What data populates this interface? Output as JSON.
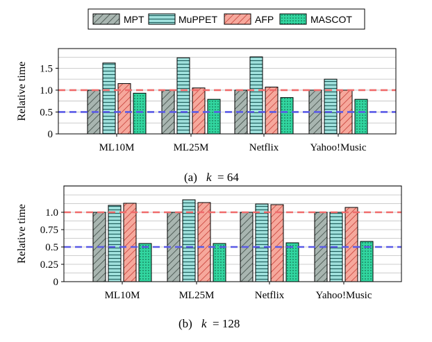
{
  "colors": {
    "MPT": "#a8b5b0",
    "MuPPET": "#9fe0dc",
    "AFP": "#f6a89c",
    "MASCOT": "#32d6a0",
    "ref_line_1": "#ef6b6b",
    "ref_line_05": "#5a5ae6"
  },
  "legend": {
    "position": "top-center",
    "entries": [
      {
        "name": "MPT",
        "pattern": "diagonal-hatch"
      },
      {
        "name": "MuPPET",
        "pattern": "horizontal-lines"
      },
      {
        "name": "AFP",
        "pattern": "diagonal-hatch"
      },
      {
        "name": "MASCOT",
        "pattern": "dots"
      }
    ]
  },
  "chart_data": [
    {
      "type": "bar",
      "caption": {
        "prefix": "(a)",
        "k_label": "k",
        "k_value": "= 64"
      },
      "ylabel": "Relative time",
      "ylim": [
        0,
        1.95
      ],
      "yticks": [
        "0",
        "0.5",
        "1.0",
        "1.5"
      ],
      "ytick_values": [
        0,
        0.5,
        1.0,
        1.5
      ],
      "minor_grid_step": 0.25,
      "reference_lines": [
        1.0,
        0.5
      ],
      "categories": [
        "ML10M",
        "ML25M",
        "Netflix",
        "Yahoo!Music"
      ],
      "series": [
        {
          "name": "MPT",
          "values": [
            1.0,
            1.0,
            1.0,
            1.0
          ]
        },
        {
          "name": "MuPPET",
          "values": [
            1.62,
            1.74,
            1.76,
            1.25
          ]
        },
        {
          "name": "AFP",
          "values": [
            1.15,
            1.05,
            1.07,
            1.0
          ]
        },
        {
          "name": "MASCOT",
          "values": [
            0.93,
            0.79,
            0.83,
            0.79
          ]
        }
      ]
    },
    {
      "type": "bar",
      "caption": {
        "prefix": "(b)",
        "k_label": "k",
        "k_value": "= 128"
      },
      "ylabel": "Relative time",
      "ylim": [
        0,
        1.38
      ],
      "yticks": [
        "0",
        "0.25",
        "0.5",
        "0.75",
        "1.0"
      ],
      "ytick_values": [
        0,
        0.25,
        0.5,
        0.75,
        1.0
      ],
      "minor_grid_step": 0.125,
      "reference_lines": [
        1.0,
        0.5
      ],
      "categories": [
        "ML10M",
        "ML25M",
        "Netflix",
        "Yahoo!Music"
      ],
      "series": [
        {
          "name": "MPT",
          "values": [
            1.0,
            1.0,
            1.0,
            1.0
          ]
        },
        {
          "name": "MuPPET",
          "values": [
            1.1,
            1.18,
            1.12,
            1.0
          ]
        },
        {
          "name": "AFP",
          "values": [
            1.13,
            1.14,
            1.11,
            1.07
          ]
        },
        {
          "name": "MASCOT",
          "values": [
            0.55,
            0.55,
            0.56,
            0.58
          ]
        }
      ]
    }
  ]
}
